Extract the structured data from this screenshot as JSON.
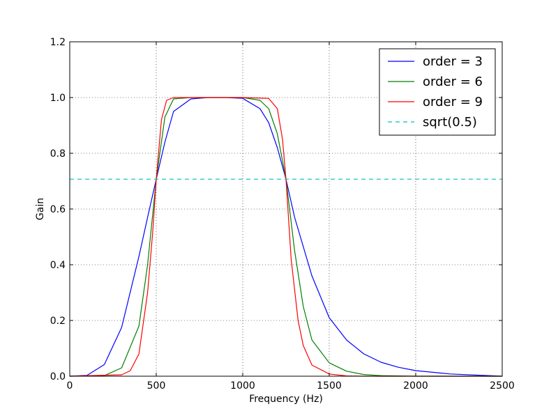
{
  "chart_data": {
    "type": "line",
    "title": "",
    "xlabel": "Frequency (Hz)",
    "ylabel": "Gain",
    "xlim": [
      0,
      2500
    ],
    "ylim": [
      0.0,
      1.2
    ],
    "x_ticks": [
      0,
      500,
      1000,
      1500,
      2000,
      2500
    ],
    "y_ticks": [
      0.0,
      0.2,
      0.4,
      0.6,
      0.8,
      1.0,
      1.2
    ],
    "x_tick_labels": [
      "0",
      "500",
      "1000",
      "1500",
      "2000",
      "2500"
    ],
    "y_tick_labels": [
      "0.0",
      "0.2",
      "0.4",
      "0.6",
      "0.8",
      "1.0",
      "1.2"
    ],
    "grid": true,
    "legend_position": "top-right",
    "band": {
      "lowcut": 500,
      "highcut": 1250
    },
    "series": [
      {
        "name": "order = 3",
        "color": "#0000ff",
        "style": "solid",
        "points": [
          [
            0,
            0.0
          ],
          [
            100,
            0.003
          ],
          [
            200,
            0.042
          ],
          [
            300,
            0.175
          ],
          [
            400,
            0.43
          ],
          [
            450,
            0.57
          ],
          [
            500,
            0.707
          ],
          [
            550,
            0.84
          ],
          [
            600,
            0.95
          ],
          [
            700,
            0.995
          ],
          [
            800,
            1.0
          ],
          [
            900,
            1.0
          ],
          [
            1000,
            0.997
          ],
          [
            1100,
            0.96
          ],
          [
            1150,
            0.91
          ],
          [
            1200,
            0.82
          ],
          [
            1250,
            0.707
          ],
          [
            1300,
            0.57
          ],
          [
            1400,
            0.36
          ],
          [
            1500,
            0.21
          ],
          [
            1600,
            0.13
          ],
          [
            1700,
            0.08
          ],
          [
            1800,
            0.05
          ],
          [
            1900,
            0.032
          ],
          [
            2000,
            0.02
          ],
          [
            2200,
            0.008
          ],
          [
            2500,
            0.0
          ]
        ]
      },
      {
        "name": "order = 6",
        "color": "#008000",
        "style": "solid",
        "points": [
          [
            0,
            0.0
          ],
          [
            200,
            0.002
          ],
          [
            300,
            0.03
          ],
          [
            400,
            0.18
          ],
          [
            450,
            0.4
          ],
          [
            500,
            0.707
          ],
          [
            550,
            0.93
          ],
          [
            600,
            0.995
          ],
          [
            700,
            1.0
          ],
          [
            1000,
            1.0
          ],
          [
            1100,
            0.99
          ],
          [
            1150,
            0.96
          ],
          [
            1200,
            0.87
          ],
          [
            1250,
            0.707
          ],
          [
            1300,
            0.45
          ],
          [
            1350,
            0.25
          ],
          [
            1400,
            0.13
          ],
          [
            1500,
            0.048
          ],
          [
            1600,
            0.018
          ],
          [
            1700,
            0.006
          ],
          [
            1800,
            0.002
          ],
          [
            2000,
            0.0
          ],
          [
            2500,
            0.0
          ]
        ]
      },
      {
        "name": "order = 9",
        "color": "#ff0000",
        "style": "solid",
        "points": [
          [
            0,
            0.0
          ],
          [
            300,
            0.005
          ],
          [
            350,
            0.02
          ],
          [
            400,
            0.08
          ],
          [
            450,
            0.3
          ],
          [
            480,
            0.52
          ],
          [
            500,
            0.707
          ],
          [
            530,
            0.92
          ],
          [
            560,
            0.99
          ],
          [
            600,
            1.0
          ],
          [
            1000,
            1.0
          ],
          [
            1150,
            0.997
          ],
          [
            1200,
            0.96
          ],
          [
            1230,
            0.85
          ],
          [
            1250,
            0.707
          ],
          [
            1280,
            0.42
          ],
          [
            1320,
            0.2
          ],
          [
            1350,
            0.11
          ],
          [
            1400,
            0.04
          ],
          [
            1500,
            0.008
          ],
          [
            1600,
            0.001
          ],
          [
            1700,
            0.0
          ],
          [
            2500,
            0.0
          ]
        ]
      },
      {
        "name": "sqrt(0.5)",
        "color": "#00bfbf",
        "style": "dashed",
        "points": [
          [
            0,
            0.707
          ],
          [
            2500,
            0.707
          ]
        ]
      }
    ]
  }
}
